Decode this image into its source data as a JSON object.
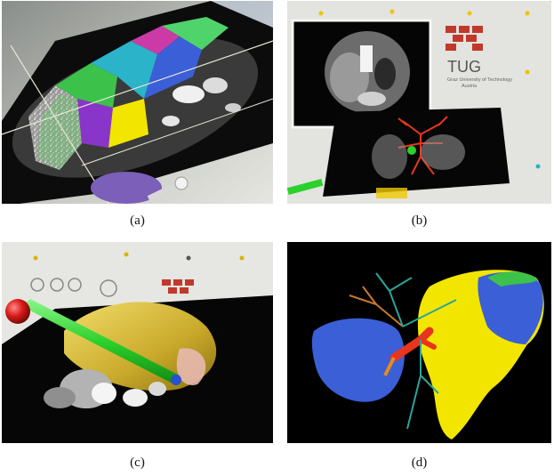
{
  "panels": [
    {
      "id": "a",
      "caption": "(a)",
      "description_icon": "segmented-ct-slice-icon"
    },
    {
      "id": "b",
      "caption": "(b)",
      "description_icon": "ar-liver-vessels-icon"
    },
    {
      "id": "c",
      "caption": "(c)",
      "description_icon": "ar-liver-tool-icon"
    },
    {
      "id": "d",
      "caption": "(d)",
      "description_icon": "liver-segments-3d-icon"
    }
  ],
  "logo": {
    "word": "TUG",
    "line1": "Graz University of Technology",
    "line2": "Austria",
    "color": "#c0392b"
  },
  "colors": {
    "segment_blue": "#3a5fd6",
    "segment_yellow": "#f2e600",
    "segment_green": "#3cc24a",
    "vessel_red": "#e8351e",
    "vessel_orange": "#e88a1e",
    "vessel_teal": "#2aa59a",
    "tool_green": "#2bd12b",
    "tool_red": "#d81a1a"
  }
}
